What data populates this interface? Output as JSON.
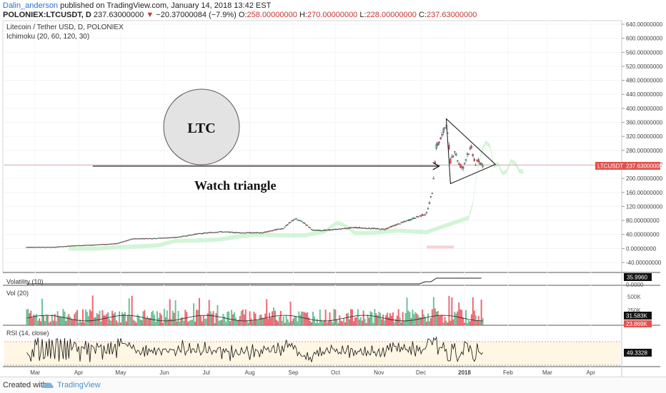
{
  "header": {
    "author": "Dalin_anderson",
    "published_text": "published on TradingView.com, January 14, 2018 13:42 EST",
    "symbol": "POLONIEX:LTCUSDT, D",
    "last_price": "237.63000000",
    "change": "−20.37000084 (−7.9%)",
    "ohlc": [
      {
        "label": "O:",
        "value": "258.00000000"
      },
      {
        "label": "H:",
        "value": "270.00000000"
      },
      {
        "label": "L:",
        "value": "228.00000000"
      },
      {
        "label": "C:",
        "value": "237.63000000"
      }
    ]
  },
  "legend": {
    "title": "Litecoin / Tether USD, D, POLONIEX",
    "indicator": "Ichimoku (20, 60, 120, 30)"
  },
  "annotations": {
    "circle_text": "LTC",
    "note": "Watch triangle"
  },
  "price_tag": {
    "symbol": "LTCUSDT",
    "value": "237.63000000"
  },
  "indicators": {
    "volatility": {
      "label": "Volatility (10)",
      "value": "35.9960",
      "axis": [
        "0.0000"
      ]
    },
    "vol": {
      "label": "Vol (20)",
      "axis": [
        "500K",
        "250K"
      ],
      "ma_value": "31.583K",
      "last_value": "23.869K"
    },
    "rsi": {
      "label": "RSI (14, close)",
      "value": "49.3328"
    }
  },
  "colors": {
    "up": "#53b987",
    "down": "#eb4d5c",
    "price_line": "#e4616a",
    "rsi_band": "#fff6e3",
    "cloud_green": "#c8f2cd",
    "cloud_red": "#f8d2d2",
    "tag_bg": "#e0524c",
    "author": "#2a6fd6",
    "tradingview": "#4a90c8"
  },
  "footer": {
    "created_with": "Created with",
    "brand": "TradingView"
  },
  "chart_data": {
    "type": "candlestick",
    "title": "Litecoin / Tether USD, D, POLONIEX",
    "price_axis_ticks": [
      640,
      600,
      560,
      520,
      480,
      440,
      400,
      360,
      320,
      280,
      240,
      200,
      160,
      120,
      80,
      40,
      0,
      -40
    ],
    "price_axis_decimals": 8,
    "ylim": [
      -60,
      660
    ],
    "time_axis_labels": [
      "Mar",
      "Apr",
      "May",
      "Jun",
      "Jul",
      "Aug",
      "Sep",
      "Oct",
      "Nov",
      "Dec",
      "2018",
      "Feb",
      "Mar",
      "Apr"
    ],
    "close_path": [
      {
        "date": "2017-02-23",
        "close": 4
      },
      {
        "date": "2017-03-15",
        "close": 4
      },
      {
        "date": "2017-03-28",
        "close": 8
      },
      {
        "date": "2017-04-10",
        "close": 10
      },
      {
        "date": "2017-04-28",
        "close": 14
      },
      {
        "date": "2017-05-10",
        "close": 28
      },
      {
        "date": "2017-05-25",
        "close": 29
      },
      {
        "date": "2017-06-10",
        "close": 32
      },
      {
        "date": "2017-06-25",
        "close": 42
      },
      {
        "date": "2017-07-10",
        "close": 48
      },
      {
        "date": "2017-07-25",
        "close": 45
      },
      {
        "date": "2017-08-10",
        "close": 45
      },
      {
        "date": "2017-08-25",
        "close": 58
      },
      {
        "date": "2017-09-02",
        "close": 85
      },
      {
        "date": "2017-09-08",
        "close": 75
      },
      {
        "date": "2017-09-15",
        "close": 52
      },
      {
        "date": "2017-09-25",
        "close": 52
      },
      {
        "date": "2017-10-15",
        "close": 60
      },
      {
        "date": "2017-11-05",
        "close": 55
      },
      {
        "date": "2017-11-25",
        "close": 85
      },
      {
        "date": "2017-12-05",
        "close": 100
      },
      {
        "date": "2017-12-09",
        "close": 160
      },
      {
        "date": "2017-12-12",
        "close": 290
      },
      {
        "date": "2017-12-16",
        "close": 320
      },
      {
        "date": "2017-12-19",
        "close": 360
      },
      {
        "date": "2017-12-22",
        "close": 250
      },
      {
        "date": "2017-12-25",
        "close": 280
      },
      {
        "date": "2017-12-28",
        "close": 240
      },
      {
        "date": "2017-12-31",
        "close": 230
      },
      {
        "date": "2018-01-03",
        "close": 270
      },
      {
        "date": "2018-01-06",
        "close": 285
      },
      {
        "date": "2018-01-09",
        "close": 240
      },
      {
        "date": "2018-01-11",
        "close": 250
      },
      {
        "date": "2018-01-14",
        "close": 237.63
      }
    ],
    "triangle": [
      {
        "date": "2017-12-19",
        "price": 370
      },
      {
        "date": "2017-12-22",
        "price": 185
      },
      {
        "date": "2018-01-23",
        "price": 240
      }
    ],
    "arrow": {
      "from": {
        "date": "2017-04-11",
        "price": 235
      },
      "to": {
        "date": "2017-12-14",
        "price": 235
      }
    },
    "last_price": 237.63
  }
}
